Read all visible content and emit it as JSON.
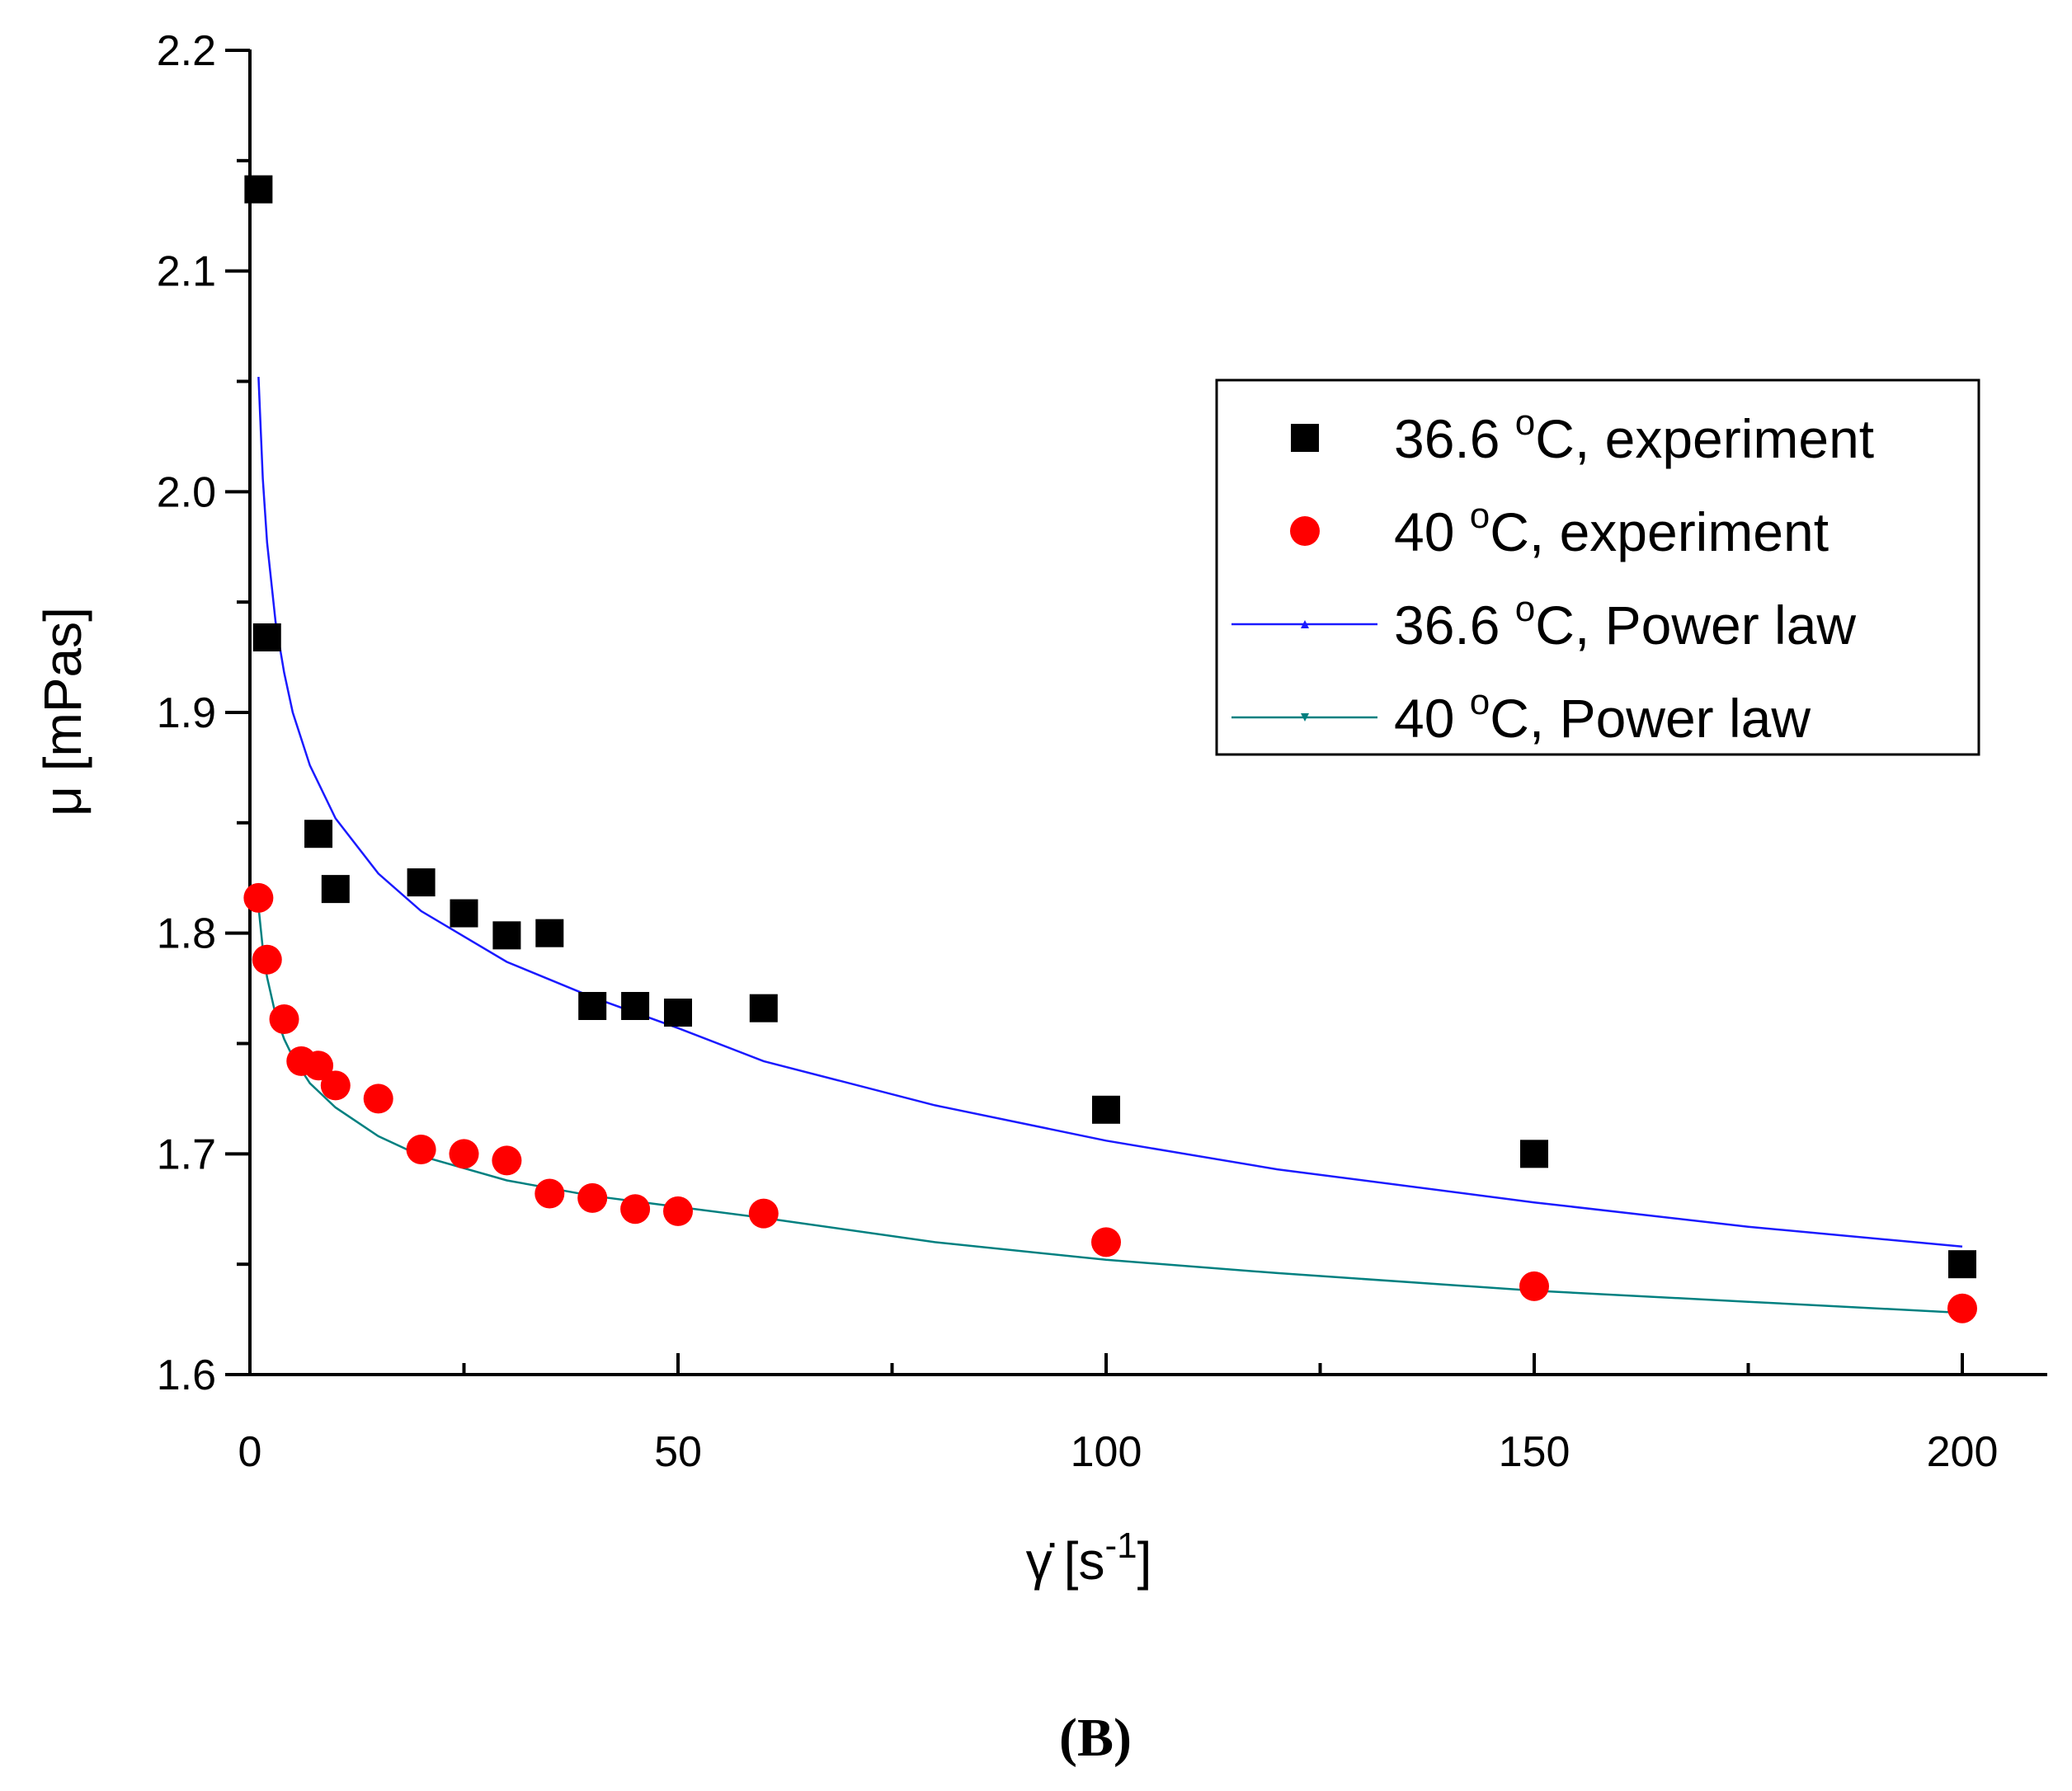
{
  "chart_data": {
    "type": "scatter",
    "title": "",
    "xlabel": {
      "symbol": "γ̇",
      "text": "[s",
      "sup": "-1",
      "close": "]"
    },
    "ylabel": "μ [mPas]",
    "xlim": [
      0,
      210
    ],
    "ylim": [
      1.6,
      2.2
    ],
    "x_ticks": [
      0,
      50,
      100,
      150,
      200
    ],
    "x_tick_labels": [
      "0",
      "50",
      "100",
      "150",
      "200"
    ],
    "x_minor_ticks": [
      25,
      75,
      125,
      175
    ],
    "y_ticks": [
      1.6,
      1.7,
      1.8,
      1.9,
      2.0,
      2.1,
      2.2
    ],
    "y_tick_labels": [
      "1.6",
      "1.7",
      "1.8",
      "1.9",
      "2.0",
      "2.1",
      "2.2"
    ],
    "y_minor_ticks": [
      1.65,
      1.75,
      1.85,
      1.95,
      2.05,
      2.15
    ],
    "grid": false,
    "legend_position": "top-right",
    "series": [
      {
        "name": "36.6 °C, experiment",
        "legend": {
          "pre": "36.6 ",
          "sup": "o",
          "post": "C, experiment"
        },
        "kind": "scatter",
        "marker": "square",
        "color": "#000000",
        "x": [
          1,
          2,
          8,
          10,
          20,
          25,
          30,
          35,
          40,
          45,
          50,
          60,
          100,
          150,
          200
        ],
        "y": [
          2.137,
          1.934,
          1.845,
          1.82,
          1.823,
          1.809,
          1.799,
          1.8,
          1.767,
          1.767,
          1.764,
          1.766,
          1.72,
          1.7,
          1.65
        ]
      },
      {
        "name": "40 °C, experiment",
        "legend": {
          "pre": "40 ",
          "sup": "o",
          "post": "C, experiment"
        },
        "kind": "scatter",
        "marker": "circle",
        "color": "#ff0000",
        "x": [
          1,
          2,
          4,
          6,
          8,
          10,
          15,
          20,
          25,
          30,
          35,
          40,
          45,
          50,
          60,
          100,
          150,
          200
        ],
        "y": [
          1.816,
          1.788,
          1.761,
          1.742,
          1.74,
          1.731,
          1.725,
          1.702,
          1.7,
          1.697,
          1.682,
          1.68,
          1.675,
          1.674,
          1.673,
          1.66,
          1.64,
          1.63
        ]
      },
      {
        "name": "36.6 °C, Power law",
        "legend": {
          "pre": "36.6 ",
          "sup": "o",
          "post": "C, Power law"
        },
        "kind": "line",
        "marker": "triangle-up",
        "color": "#1a1aff",
        "x": [
          1,
          1.5,
          2,
          3,
          4,
          5,
          7,
          10,
          15,
          20,
          30,
          40,
          50,
          60,
          80,
          100,
          120,
          150,
          175,
          200
        ],
        "y": [
          2.052,
          2.006,
          1.977,
          1.941,
          1.918,
          1.9,
          1.876,
          1.852,
          1.827,
          1.81,
          1.787,
          1.771,
          1.757,
          1.742,
          1.722,
          1.706,
          1.693,
          1.678,
          1.667,
          1.658
        ]
      },
      {
        "name": "40 °C, Power law",
        "legend": {
          "pre": "40 ",
          "sup": "o",
          "post": "C, Power law"
        },
        "kind": "line",
        "marker": "triangle-down",
        "color": "#008080",
        "x": [
          1,
          1.5,
          2,
          3,
          4,
          5,
          7,
          10,
          15,
          20,
          30,
          40,
          50,
          60,
          80,
          100,
          120,
          150,
          175,
          200
        ],
        "y": [
          1.812,
          1.793,
          1.78,
          1.763,
          1.752,
          1.744,
          1.732,
          1.721,
          1.708,
          1.699,
          1.688,
          1.681,
          1.676,
          1.671,
          1.66,
          1.652,
          1.646,
          1.638,
          1.633,
          1.628
        ]
      }
    ]
  },
  "panel_label": "(B)"
}
